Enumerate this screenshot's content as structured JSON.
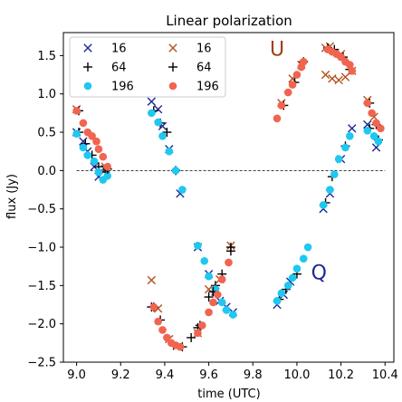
{
  "chart_data": {
    "type": "scatter",
    "title": "Linear polarization",
    "xlabel": "time (UTC)",
    "ylabel": "flux (Jy)",
    "xlim": [
      8.94,
      10.44
    ],
    "ylim": [
      -2.5,
      1.8
    ],
    "xticks": [
      "9.0",
      "9.2",
      "9.4",
      "9.6",
      "9.8",
      "10.0",
      "10.2",
      "10.4"
    ],
    "yticks": [
      "1.5",
      "1.0",
      "0.5",
      "0.0",
      "−0.5",
      "−1.0",
      "−1.5",
      "−2.0",
      "−2.5"
    ],
    "xtick_values": [
      9.0,
      9.2,
      9.4,
      9.6,
      9.8,
      10.0,
      10.2,
      10.4
    ],
    "ytick_values": [
      1.5,
      1.0,
      0.5,
      0.0,
      -0.5,
      -1.0,
      -1.5,
      -2.0,
      -2.5
    ],
    "grid": false,
    "zero_line": true,
    "legend_position": "top-left",
    "annotations": [
      {
        "text": "U",
        "x": 9.91,
        "y": 1.5,
        "color": "#a0400a"
      },
      {
        "text": "Q",
        "x": 10.1,
        "y": -1.42,
        "color": "#1c2896"
      }
    ],
    "series": [
      {
        "name": "16",
        "marker": "x",
        "color": "#1c2896",
        "points": [
          [
            9.0,
            0.5
          ],
          [
            9.03,
            0.38
          ],
          [
            9.05,
            0.25
          ],
          [
            9.08,
            0.05
          ],
          [
            9.1,
            -0.08
          ],
          [
            9.13,
            0.02
          ],
          [
            9.34,
            0.9
          ],
          [
            9.37,
            0.8
          ],
          [
            9.39,
            0.58
          ],
          [
            9.42,
            0.28
          ],
          [
            9.47,
            -0.3
          ],
          [
            9.55,
            -1.0
          ],
          [
            9.6,
            -1.35
          ],
          [
            9.63,
            -1.58
          ],
          [
            9.65,
            -1.7
          ],
          [
            9.68,
            -1.78
          ],
          [
            9.71,
            -1.85
          ],
          [
            9.91,
            -1.75
          ],
          [
            9.94,
            -1.62
          ],
          [
            9.97,
            -1.45
          ],
          [
            10.12,
            -0.5
          ],
          [
            10.15,
            -0.3
          ],
          [
            10.2,
            0.15
          ],
          [
            10.25,
            0.55
          ],
          [
            10.32,
            0.6
          ],
          [
            10.36,
            0.3
          ]
        ]
      },
      {
        "name": "64",
        "marker": "+",
        "color": "#000000",
        "points": [
          [
            9.01,
            0.5
          ],
          [
            9.04,
            0.35
          ],
          [
            9.07,
            0.2
          ],
          [
            9.1,
            0.05
          ],
          [
            9.13,
            -0.02
          ],
          [
            9.34,
            -1.78
          ],
          [
            9.35,
            0.78
          ],
          [
            9.38,
            0.62
          ],
          [
            9.41,
            0.5
          ],
          [
            9.45,
            0.0
          ],
          [
            9.48,
            -2.3
          ],
          [
            9.52,
            -2.18
          ],
          [
            9.55,
            -2.05
          ],
          [
            9.6,
            -1.65
          ],
          [
            9.63,
            -1.5
          ],
          [
            9.7,
            -1.05
          ],
          [
            9.92,
            -1.68
          ],
          [
            9.95,
            -1.55
          ],
          [
            10.0,
            -1.35
          ],
          [
            10.13,
            -0.42
          ],
          [
            10.16,
            -0.08
          ],
          [
            10.22,
            0.32
          ],
          [
            10.33,
            0.55
          ],
          [
            10.37,
            0.4
          ]
        ]
      },
      {
        "name": "196",
        "marker": "circle",
        "color": "#1ec8f0",
        "points": [
          [
            9.0,
            0.48
          ],
          [
            9.03,
            0.3
          ],
          [
            9.05,
            0.2
          ],
          [
            9.08,
            0.12
          ],
          [
            9.1,
            -0.02
          ],
          [
            9.12,
            -0.12
          ],
          [
            9.14,
            -0.07
          ],
          [
            9.34,
            0.75
          ],
          [
            9.37,
            0.63
          ],
          [
            9.39,
            0.45
          ],
          [
            9.42,
            0.25
          ],
          [
            9.45,
            0.0
          ],
          [
            9.48,
            -0.25
          ],
          [
            9.55,
            -0.98
          ],
          [
            9.58,
            -1.18
          ],
          [
            9.6,
            -1.38
          ],
          [
            9.63,
            -1.55
          ],
          [
            9.66,
            -1.72
          ],
          [
            9.68,
            -1.82
          ],
          [
            9.71,
            -1.88
          ],
          [
            9.91,
            -1.7
          ],
          [
            9.93,
            -1.6
          ],
          [
            9.96,
            -1.5
          ],
          [
            9.98,
            -1.4
          ],
          [
            10.0,
            -1.28
          ],
          [
            10.03,
            -1.15
          ],
          [
            10.05,
            -1.0
          ],
          [
            10.12,
            -0.45
          ],
          [
            10.15,
            -0.25
          ],
          [
            10.17,
            -0.05
          ],
          [
            10.19,
            0.15
          ],
          [
            10.22,
            0.3
          ],
          [
            10.24,
            0.45
          ],
          [
            10.32,
            0.52
          ],
          [
            10.35,
            0.45
          ],
          [
            10.37,
            0.38
          ]
        ]
      },
      {
        "name": "16",
        "marker": "x",
        "color": "#b4501e",
        "points": [
          [
            9.0,
            0.8
          ],
          [
            9.13,
            0.05
          ],
          [
            9.34,
            -1.43
          ],
          [
            9.37,
            -1.8
          ],
          [
            9.42,
            -2.2
          ],
          [
            9.55,
            -2.12
          ],
          [
            9.6,
            -1.55
          ],
          [
            9.65,
            -1.42
          ],
          [
            9.7,
            -0.98
          ],
          [
            9.93,
            0.88
          ],
          [
            9.98,
            1.2
          ],
          [
            10.02,
            1.38
          ],
          [
            10.13,
            1.6
          ],
          [
            10.15,
            1.62
          ],
          [
            10.2,
            1.52
          ],
          [
            10.25,
            1.3
          ],
          [
            10.13,
            1.25
          ],
          [
            10.16,
            1.2
          ],
          [
            10.19,
            1.18
          ],
          [
            10.22,
            1.22
          ],
          [
            10.32,
            0.92
          ],
          [
            10.35,
            0.7
          ]
        ]
      },
      {
        "name": "64",
        "marker": "+",
        "color": "#000000",
        "points": [
          [
            9.01,
            0.78
          ],
          [
            9.14,
            0.02
          ],
          [
            9.35,
            -1.78
          ],
          [
            9.38,
            -1.95
          ],
          [
            9.44,
            -2.28
          ],
          [
            9.56,
            -2.02
          ],
          [
            9.62,
            -1.58
          ],
          [
            9.66,
            -1.35
          ],
          [
            9.7,
            -1.0
          ],
          [
            9.94,
            0.85
          ],
          [
            9.99,
            1.15
          ],
          [
            10.03,
            1.42
          ],
          [
            10.14,
            1.6
          ],
          [
            10.17,
            1.58
          ],
          [
            10.21,
            1.48
          ],
          [
            10.24,
            1.32
          ],
          [
            10.33,
            0.88
          ],
          [
            10.36,
            0.6
          ]
        ]
      },
      {
        "name": "196",
        "marker": "circle",
        "color": "#f06450",
        "points": [
          [
            9.0,
            0.78
          ],
          [
            9.03,
            0.62
          ],
          [
            9.05,
            0.5
          ],
          [
            9.07,
            0.45
          ],
          [
            9.09,
            0.38
          ],
          [
            9.1,
            0.28
          ],
          [
            9.12,
            0.18
          ],
          [
            9.14,
            0.05
          ],
          [
            9.35,
            -1.78
          ],
          [
            9.37,
            -1.97
          ],
          [
            9.39,
            -2.08
          ],
          [
            9.41,
            -2.18
          ],
          [
            9.43,
            -2.25
          ],
          [
            9.45,
            -2.28
          ],
          [
            9.47,
            -2.3
          ],
          [
            9.55,
            -2.12
          ],
          [
            9.57,
            -2.02
          ],
          [
            9.6,
            -1.85
          ],
          [
            9.62,
            -1.72
          ],
          [
            9.64,
            -1.62
          ],
          [
            9.66,
            -1.42
          ],
          [
            9.69,
            -1.2
          ],
          [
            9.91,
            0.68
          ],
          [
            9.93,
            0.85
          ],
          [
            9.96,
            1.02
          ],
          [
            9.98,
            1.12
          ],
          [
            10.0,
            1.25
          ],
          [
            10.02,
            1.35
          ],
          [
            10.03,
            1.42
          ],
          [
            10.14,
            1.58
          ],
          [
            10.16,
            1.55
          ],
          [
            10.18,
            1.52
          ],
          [
            10.2,
            1.48
          ],
          [
            10.22,
            1.42
          ],
          [
            10.24,
            1.38
          ],
          [
            10.25,
            1.3
          ],
          [
            10.32,
            0.88
          ],
          [
            10.34,
            0.75
          ],
          [
            10.36,
            0.62
          ],
          [
            10.38,
            0.55
          ]
        ]
      }
    ]
  }
}
